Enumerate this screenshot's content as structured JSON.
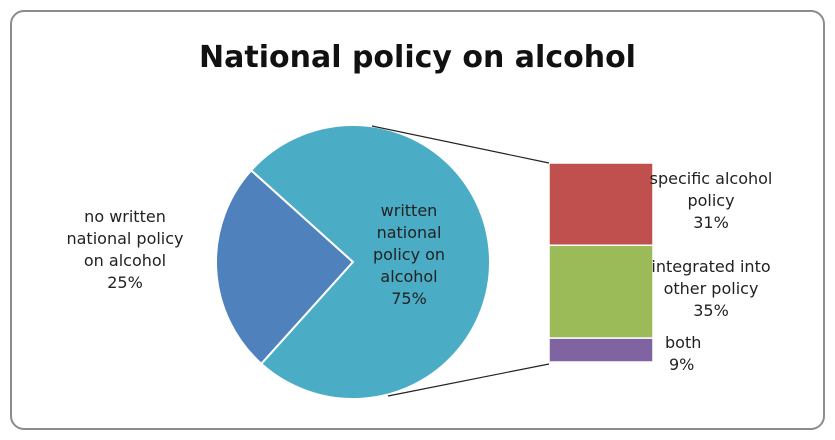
{
  "chart_data": {
    "type": "pie",
    "title": "National policy on alcohol",
    "slices": [
      {
        "label": [
          "no written",
          "national policy",
          "on alcohol",
          "25%"
        ],
        "value": 25,
        "color": "#4f81bd"
      },
      {
        "label": [
          "written",
          "national",
          "policy on",
          "alcohol",
          "75%"
        ],
        "value": 75,
        "color": "#4bacc6"
      }
    ],
    "breakdown": {
      "of_slice": "written national policy on alcohol",
      "type": "stacked-bar",
      "segments": [
        {
          "label": [
            "specific alcohol",
            "policy",
            "31%"
          ],
          "value": 31,
          "color": "#c0504d"
        },
        {
          "label": [
            "integrated into",
            "other policy",
            "35%"
          ],
          "value": 35,
          "color": "#9bbb59"
        },
        {
          "label": [
            "both",
            "9%"
          ],
          "value": 9,
          "color": "#8064a2"
        }
      ]
    },
    "legend": "none"
  }
}
